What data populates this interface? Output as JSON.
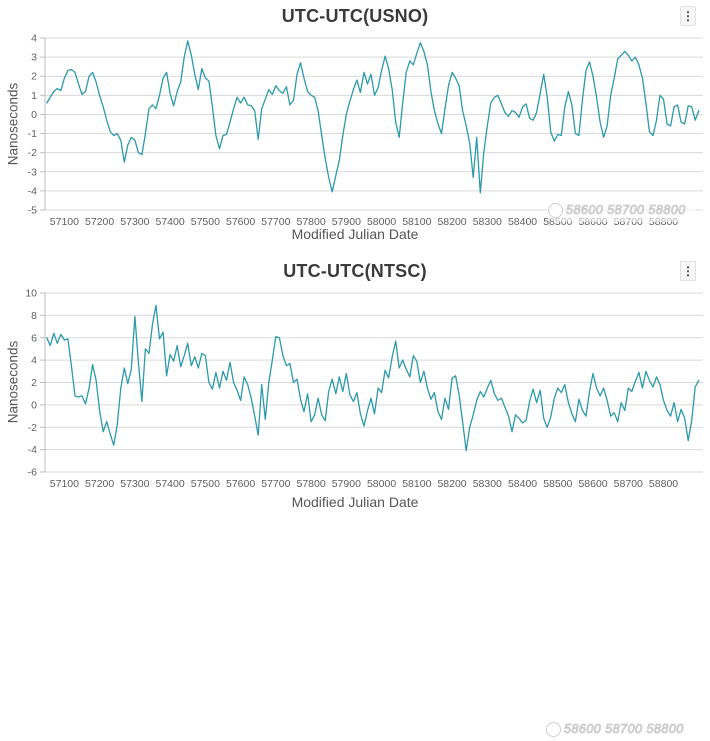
{
  "page": {
    "background": "#ffffff"
  },
  "icons": {
    "menu_dots": "⋮"
  },
  "watermark": {
    "text": "58600 58700 58800"
  },
  "colors": {
    "line": "#2b9aa9",
    "grid": "#d9d9d9",
    "axis": "#bdbdbd",
    "tick_label": "#5f5f5f",
    "title": "#3b3b3b",
    "axis_title": "#565656"
  },
  "chart_data": [
    {
      "type": "line",
      "title": "UTC-UTC(USNO)",
      "xlabel": "Modified Julian Date",
      "ylabel": "Nanoseconds",
      "legend": "none",
      "grid": true,
      "color": "#2b9aa9",
      "xlim": [
        57045,
        58912
      ],
      "ylim": [
        -5,
        4
      ],
      "xticks": [
        57100,
        57200,
        57300,
        57400,
        57500,
        57600,
        57700,
        57800,
        57900,
        58000,
        58100,
        58200,
        58300,
        58400,
        58500,
        58600,
        58700,
        58800
      ],
      "yticks": [
        4,
        3,
        2,
        1,
        0,
        -1,
        -2,
        -3,
        -4,
        -5
      ],
      "x_start": 57050,
      "x_step": 10,
      "values": [
        0.6,
        0.9,
        1.2,
        1.35,
        1.25,
        1.9,
        2.3,
        2.35,
        2.2,
        1.6,
        1.05,
        1.2,
        2.0,
        2.2,
        1.7,
        1.0,
        0.4,
        -0.3,
        -0.9,
        -1.1,
        -1.0,
        -1.35,
        -2.5,
        -1.6,
        -1.2,
        -1.35,
        -2.0,
        -2.1,
        -1.0,
        0.3,
        0.5,
        0.3,
        1.0,
        1.9,
        2.2,
        1.1,
        0.45,
        1.2,
        1.7,
        3.0,
        3.85,
        3.1,
        2.1,
        1.3,
        2.4,
        1.9,
        1.75,
        0.4,
        -1.1,
        -1.8,
        -1.1,
        -1.05,
        -0.4,
        0.3,
        0.9,
        0.6,
        0.9,
        0.5,
        0.45,
        0.2,
        -1.3,
        0.3,
        0.8,
        1.3,
        1.05,
        1.5,
        1.25,
        1.1,
        1.45,
        0.5,
        0.75,
        2.1,
        2.7,
        1.9,
        1.2,
        1.0,
        0.9,
        0.2,
        -1.1,
        -2.3,
        -3.3,
        -4.05,
        -3.2,
        -2.4,
        -1.1,
        0.0,
        0.7,
        1.3,
        1.8,
        1.15,
        2.2,
        1.6,
        2.1,
        1.0,
        1.4,
        2.3,
        3.05,
        2.4,
        1.3,
        -0.4,
        -1.2,
        0.6,
        2.2,
        2.8,
        2.6,
        3.2,
        3.75,
        3.3,
        2.6,
        1.2,
        0.2,
        -0.5,
        -1.0,
        0.3,
        1.5,
        2.2,
        1.9,
        1.5,
        0.2,
        -0.6,
        -1.5,
        -3.3,
        -1.2,
        -4.1,
        -2.0,
        -0.6,
        0.6,
        0.9,
        1.0,
        0.55,
        0.1,
        -0.1,
        0.2,
        0.1,
        -0.15,
        0.4,
        0.55,
        -0.2,
        -0.3,
        0.1,
        1.1,
        2.1,
        0.9,
        -0.9,
        -1.4,
        -1.05,
        -1.1,
        0.4,
        1.2,
        0.5,
        -1.0,
        -1.1,
        0.8,
        2.3,
        2.75,
        2.0,
        0.9,
        -0.4,
        -1.2,
        -0.6,
        1.0,
        1.9,
        2.9,
        3.1,
        3.3,
        3.1,
        2.8,
        3.0,
        2.6,
        1.9,
        0.6,
        -0.9,
        -1.1,
        -0.3,
        1.0,
        0.8,
        -0.5,
        -0.6,
        0.4,
        0.5,
        -0.4,
        -0.5,
        0.45,
        0.4,
        -0.3,
        0.2
      ]
    },
    {
      "type": "line",
      "title": "UTC-UTC(NTSC)",
      "xlabel": "Modified Julian Date",
      "ylabel": "Nanoseconds",
      "legend": "none",
      "grid": true,
      "color": "#2b9aa9",
      "xlim": [
        57045,
        58912
      ],
      "ylim": [
        -6,
        10
      ],
      "xticks": [
        57100,
        57200,
        57300,
        57400,
        57500,
        57600,
        57700,
        57800,
        57900,
        58000,
        58100,
        58200,
        58300,
        58400,
        58500,
        58600,
        58700,
        58800
      ],
      "yticks": [
        10,
        8,
        6,
        4,
        2,
        0,
        -2,
        -4,
        -6
      ],
      "x_start": 57050,
      "x_step": 10,
      "values": [
        6.0,
        5.3,
        6.4,
        5.5,
        6.3,
        5.8,
        5.9,
        3.5,
        0.8,
        0.7,
        0.8,
        0.1,
        1.5,
        3.6,
        2.2,
        -0.5,
        -2.4,
        -1.5,
        -2.6,
        -3.6,
        -1.8,
        1.5,
        3.3,
        1.9,
        3.2,
        7.9,
        3.8,
        0.3,
        5.0,
        4.6,
        7.2,
        8.9,
        5.9,
        6.5,
        2.6,
        4.5,
        3.9,
        5.3,
        3.4,
        4.4,
        5.5,
        3.5,
        4.3,
        3.3,
        4.6,
        4.4,
        2.0,
        1.4,
        2.9,
        1.5,
        3.0,
        2.2,
        3.8,
        2.0,
        1.3,
        0.4,
        2.5,
        1.8,
        0.6,
        -1.0,
        -2.7,
        1.8,
        -1.3,
        2.0,
        4.0,
        6.1,
        6.0,
        4.4,
        3.5,
        3.7,
        2.0,
        2.3,
        0.5,
        -0.6,
        1.0,
        -1.5,
        -0.9,
        0.6,
        -0.9,
        -1.4,
        1.2,
        2.3,
        1.0,
        2.5,
        1.2,
        2.8,
        0.9,
        0.3,
        1.1,
        -0.8,
        -1.9,
        -0.5,
        0.6,
        -0.8,
        1.5,
        1.1,
        3.1,
        2.4,
        4.3,
        5.7,
        3.3,
        4.0,
        3.2,
        2.5,
        4.4,
        3.9,
        2.0,
        3.0,
        1.5,
        0.5,
        1.1,
        -0.6,
        -1.3,
        0.6,
        -0.4,
        2.4,
        2.6,
        0.9,
        -1.5,
        -4.1,
        -2.0,
        -0.9,
        0.4,
        1.2,
        0.7,
        1.5,
        2.2,
        1.0,
        0.4,
        0.6,
        -0.2,
        -1.0,
        -2.4,
        -0.9,
        -1.2,
        -1.6,
        -1.4,
        0.3,
        1.4,
        0.2,
        1.3,
        -1.2,
        -2.0,
        -1.1,
        0.6,
        1.5,
        1.1,
        1.8,
        0.2,
        -0.8,
        -1.5,
        0.5,
        -0.5,
        -1.0,
        1.2,
        2.8,
        1.5,
        0.8,
        1.5,
        0.4,
        -1.0,
        -0.7,
        -1.5,
        0.2,
        -0.5,
        1.5,
        1.2,
        2.1,
        2.9,
        1.5,
        3.0,
        2.2,
        1.6,
        2.5,
        1.8,
        0.4,
        -0.5,
        -1.0,
        0.2,
        -1.5,
        -0.4,
        -1.2,
        -3.2,
        -1.4,
        1.6,
        2.2
      ]
    }
  ]
}
